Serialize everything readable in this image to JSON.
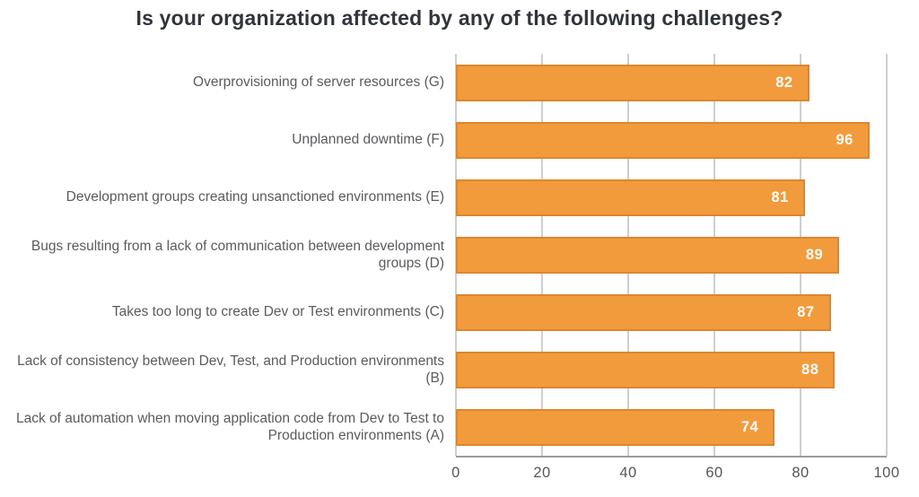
{
  "title": "Is your organization affected by any of the following challenges?",
  "chart_data": {
    "type": "bar",
    "orientation": "horizontal",
    "title": "Is your organization affected by any of the following challenges?",
    "categories": [
      "Overprovisioning of server resources (G)",
      "Unplanned downtime (F)",
      "Development groups creating unsanctioned environments (E)",
      "Bugs resulting from a lack of communication between development groups (D)",
      "Takes too long to create Dev or Test environments (C)",
      "Lack of consistency between Dev, Test, and Production environments (B)",
      "Lack of automation when moving application code from Dev to Test to Production environments (A)"
    ],
    "values": [
      82,
      96,
      81,
      89,
      87,
      88,
      74
    ],
    "value_labels": [
      "82",
      "96",
      "81",
      "89",
      "87",
      "88",
      "74"
    ],
    "xlabel": "",
    "ylabel": "",
    "xlim": [
      0,
      100
    ],
    "x_ticks": [
      0,
      20,
      40,
      60,
      80,
      100
    ],
    "grid": true,
    "legend": "none",
    "colors": {
      "bar_fill": "#f29b3d",
      "bar_border": "#dd862e",
      "value_label": "#ffffff",
      "gridline": "#9c9c9c",
      "title_text": "#31343b",
      "category_text": "#5b5b60",
      "tick_text": "#55555a"
    }
  }
}
